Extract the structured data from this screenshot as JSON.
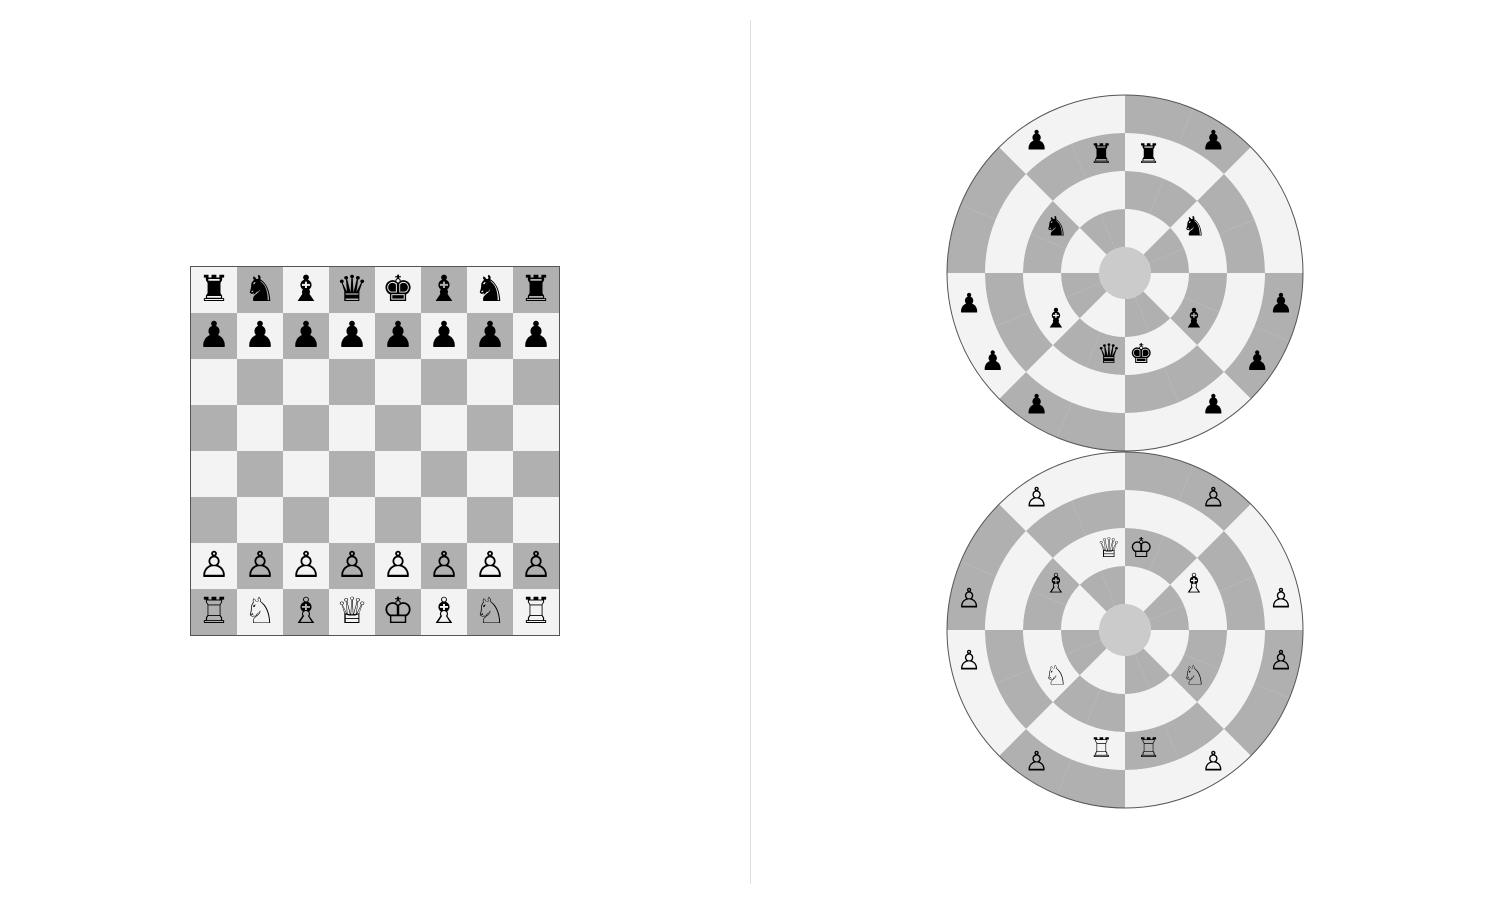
{
  "colors": {
    "light_square": "#f3f3f3",
    "dark_square": "#b0b0b0",
    "center": "#cbcbcb",
    "outline": "#555555"
  },
  "square_board": {
    "ranks": [
      [
        "♜",
        "♞",
        "♝",
        "♛",
        "♚",
        "♝",
        "♞",
        "♜"
      ],
      [
        "♟",
        "♟",
        "♟",
        "♟",
        "♟",
        "♟",
        "♟",
        "♟"
      ],
      [
        "",
        "",
        "",
        "",
        "",
        "",
        "",
        ""
      ],
      [
        "",
        "",
        "",
        "",
        "",
        "",
        "",
        ""
      ],
      [
        "",
        "",
        "",
        "",
        "",
        "",
        "",
        ""
      ],
      [
        "",
        "",
        "",
        "",
        "",
        "",
        "",
        ""
      ],
      [
        "♙",
        "♙",
        "♙",
        "♙",
        "♙",
        "♙",
        "♙",
        "♙"
      ],
      [
        "♖",
        "♘",
        "♗",
        "♕",
        "♔",
        "♗",
        "♘",
        "♖"
      ]
    ]
  },
  "circular_board": {
    "rings": 4,
    "sectors": 16,
    "boards": [
      {
        "name": "top",
        "pieces": [
          {
            "glyph": "♟",
            "ring": 3,
            "sector": 14
          },
          {
            "glyph": "♟",
            "ring": 3,
            "sector": 1
          },
          {
            "glyph": "♜",
            "ring": 2,
            "sector": 15
          },
          {
            "glyph": "♜",
            "ring": 2,
            "sector": 0
          },
          {
            "glyph": "♟",
            "ring": 3,
            "sector": 11
          },
          {
            "glyph": "♟",
            "ring": 3,
            "sector": 4
          },
          {
            "glyph": "♞",
            "ring": 1,
            "sector": 13
          },
          {
            "glyph": "♞",
            "ring": 1,
            "sector": 2
          },
          {
            "glyph": "♝",
            "ring": 1,
            "sector": 10
          },
          {
            "glyph": "♝",
            "ring": 1,
            "sector": 5
          },
          {
            "glyph": "♟",
            "ring": 3,
            "sector": 10
          },
          {
            "glyph": "♟",
            "ring": 3,
            "sector": 5
          },
          {
            "glyph": "♛",
            "ring": 1,
            "sector": 8
          },
          {
            "glyph": "♚",
            "ring": 1,
            "sector": 7
          },
          {
            "glyph": "♟",
            "ring": 3,
            "sector": 9
          },
          {
            "glyph": "♟",
            "ring": 3,
            "sector": 6
          }
        ]
      },
      {
        "name": "bottom",
        "pieces": [
          {
            "glyph": "♙",
            "ring": 3,
            "sector": 14
          },
          {
            "glyph": "♙",
            "ring": 3,
            "sector": 1
          },
          {
            "glyph": "♕",
            "ring": 1,
            "sector": 15
          },
          {
            "glyph": "♔",
            "ring": 1,
            "sector": 0
          },
          {
            "glyph": "♙",
            "ring": 3,
            "sector": 12
          },
          {
            "glyph": "♙",
            "ring": 3,
            "sector": 3
          },
          {
            "glyph": "♗",
            "ring": 1,
            "sector": 13
          },
          {
            "glyph": "♗",
            "ring": 1,
            "sector": 2
          },
          {
            "glyph": "♘",
            "ring": 1,
            "sector": 10
          },
          {
            "glyph": "♘",
            "ring": 1,
            "sector": 5
          },
          {
            "glyph": "♙",
            "ring": 3,
            "sector": 11
          },
          {
            "glyph": "♙",
            "ring": 3,
            "sector": 4
          },
          {
            "glyph": "♖",
            "ring": 2,
            "sector": 8
          },
          {
            "glyph": "♖",
            "ring": 2,
            "sector": 7
          },
          {
            "glyph": "♙",
            "ring": 3,
            "sector": 9
          },
          {
            "glyph": "♙",
            "ring": 3,
            "sector": 6
          }
        ]
      }
    ]
  }
}
